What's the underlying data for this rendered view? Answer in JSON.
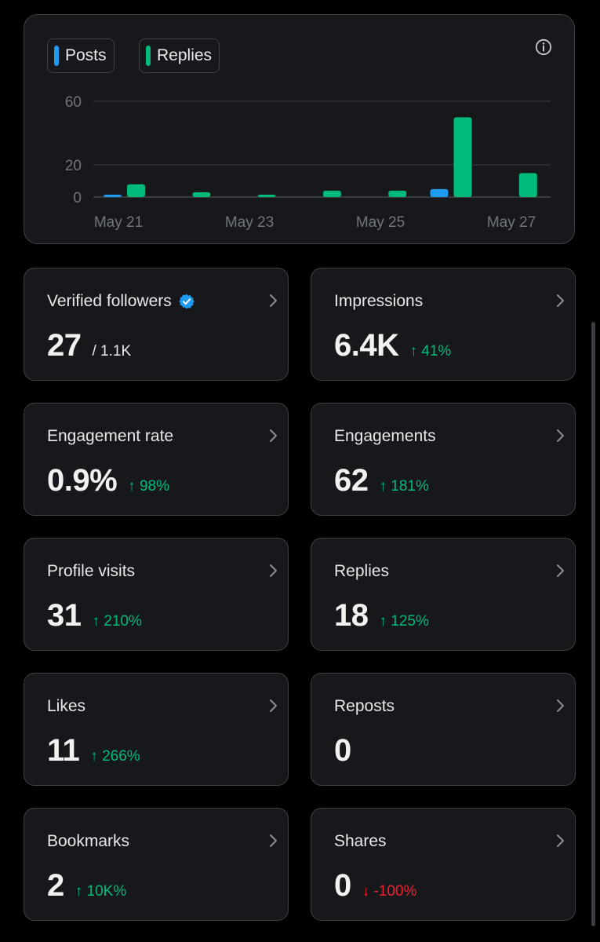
{
  "legend": {
    "posts_label": "Posts",
    "replies_label": "Replies"
  },
  "colors": {
    "posts": "#1d9bf0",
    "replies": "#00ba7c",
    "up": "#00ba7c",
    "down": "#f4212e"
  },
  "icons": {
    "info": "info-icon",
    "verified": "verified-badge-icon",
    "chevron": "chevron-right-icon"
  },
  "chart_data": {
    "type": "bar",
    "x_labels": [
      "May 21",
      "May 23",
      "May 25",
      "May 27"
    ],
    "y_ticks": [
      0,
      20,
      60
    ],
    "ylim": [
      0,
      60
    ],
    "grid": true,
    "legend_position": "top-left",
    "categories": [
      "May 21",
      "May 22",
      "May 23",
      "May 24",
      "May 25",
      "May 26",
      "May 27"
    ],
    "series": [
      {
        "name": "Posts",
        "values": [
          1,
          0,
          0,
          0,
          0,
          5,
          0
        ]
      },
      {
        "name": "Replies",
        "values": [
          8,
          3,
          1,
          4,
          4,
          50,
          15
        ]
      }
    ]
  },
  "stats": [
    {
      "label": "Verified followers",
      "value": "27",
      "sub": "/ 1.1K",
      "change": "",
      "direction": "",
      "verified": true
    },
    {
      "label": "Impressions",
      "value": "6.4K",
      "sub": "",
      "change": "↑ 41%",
      "direction": "up",
      "verified": false
    },
    {
      "label": "Engagement rate",
      "value": "0.9%",
      "sub": "",
      "change": "↑ 98%",
      "direction": "up",
      "verified": false
    },
    {
      "label": "Engagements",
      "value": "62",
      "sub": "",
      "change": "↑ 181%",
      "direction": "up",
      "verified": false
    },
    {
      "label": "Profile visits",
      "value": "31",
      "sub": "",
      "change": "↑ 210%",
      "direction": "up",
      "verified": false
    },
    {
      "label": "Replies",
      "value": "18",
      "sub": "",
      "change": "↑ 125%",
      "direction": "up",
      "verified": false
    },
    {
      "label": "Likes",
      "value": "11",
      "sub": "",
      "change": "↑ 266%",
      "direction": "up",
      "verified": false
    },
    {
      "label": "Reposts",
      "value": "0",
      "sub": "",
      "change": "",
      "direction": "",
      "verified": false
    },
    {
      "label": "Bookmarks",
      "value": "2",
      "sub": "",
      "change": "↑ 10K%",
      "direction": "up",
      "verified": false
    },
    {
      "label": "Shares",
      "value": "0",
      "sub": "",
      "change": "↓ -100%",
      "direction": "down",
      "verified": false
    }
  ]
}
